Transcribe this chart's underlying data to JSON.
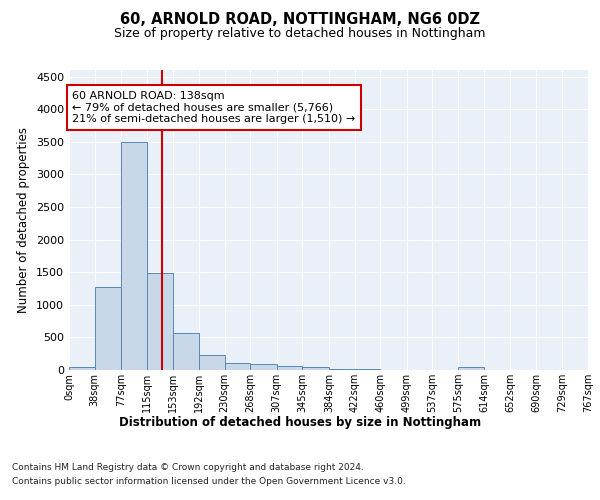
{
  "title1": "60, ARNOLD ROAD, NOTTINGHAM, NG6 0DZ",
  "title2": "Size of property relative to detached houses in Nottingham",
  "xlabel": "Distribution of detached houses by size in Nottingham",
  "ylabel": "Number of detached properties",
  "bar_color": "#c8d8e8",
  "bar_edge_color": "#5588bb",
  "vline_color": "#cc0000",
  "vline_x": 138,
  "bin_edges": [
    0,
    38,
    77,
    115,
    153,
    192,
    230,
    268,
    307,
    345,
    384,
    422,
    460,
    499,
    537,
    575,
    614,
    652,
    690,
    729,
    767
  ],
  "bar_heights": [
    40,
    1270,
    3500,
    1480,
    570,
    235,
    115,
    85,
    55,
    45,
    20,
    10,
    5,
    0,
    0,
    40,
    0,
    0,
    0,
    0
  ],
  "annotation_text": "60 ARNOLD ROAD: 138sqm\n← 79% of detached houses are smaller (5,766)\n21% of semi-detached houses are larger (1,510) →",
  "annotation_box_color": "#ffffff",
  "annotation_box_edge": "#cc0000",
  "ylim": [
    0,
    4600
  ],
  "yticks": [
    0,
    500,
    1000,
    1500,
    2000,
    2500,
    3000,
    3500,
    4000,
    4500
  ],
  "footer1": "Contains HM Land Registry data © Crown copyright and database right 2024.",
  "footer2": "Contains public sector information licensed under the Open Government Licence v3.0.",
  "plot_bg_color": "#eaf0f8"
}
